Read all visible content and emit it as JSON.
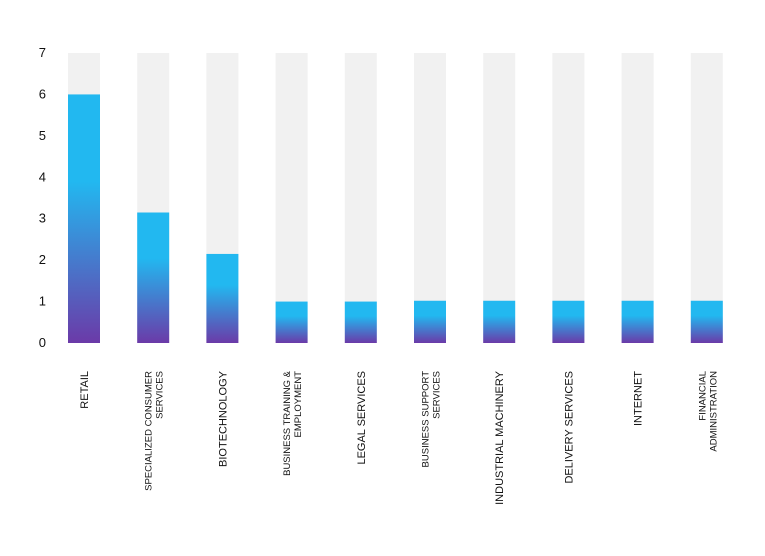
{
  "chart_data": {
    "type": "bar",
    "categories": [
      [
        "RETAIL"
      ],
      [
        "SPECIALIZED CONSUMER",
        "SERVICES"
      ],
      [
        "BIOTECHNOLOGY"
      ],
      [
        "BUSINESS TRAINING &",
        "EMPLOYMENT"
      ],
      [
        "LEGAL SERVICES"
      ],
      [
        "BUSINESS SUPPORT",
        "SERVICES"
      ],
      [
        "INDUSTRIAL MACHINERY"
      ],
      [
        "DELIVERY SERVICES"
      ],
      [
        "INTERNET"
      ],
      [
        "FINANCIAL",
        "ADMINISTRATION"
      ]
    ],
    "values": [
      6,
      3.15,
      2.15,
      1,
      1,
      1.02,
      1.02,
      1.02,
      1.02,
      1.02
    ],
    "ylim": [
      0,
      7
    ],
    "yticks": [
      "0",
      "1",
      "2",
      "3",
      "4",
      "5",
      "6",
      "7"
    ],
    "background_bar_color": "#f1f1f1",
    "gradient_top_color": "#22b8f0",
    "gradient_bottom_color": "#6b3aa8",
    "title": "",
    "xlabel": "",
    "ylabel": ""
  }
}
